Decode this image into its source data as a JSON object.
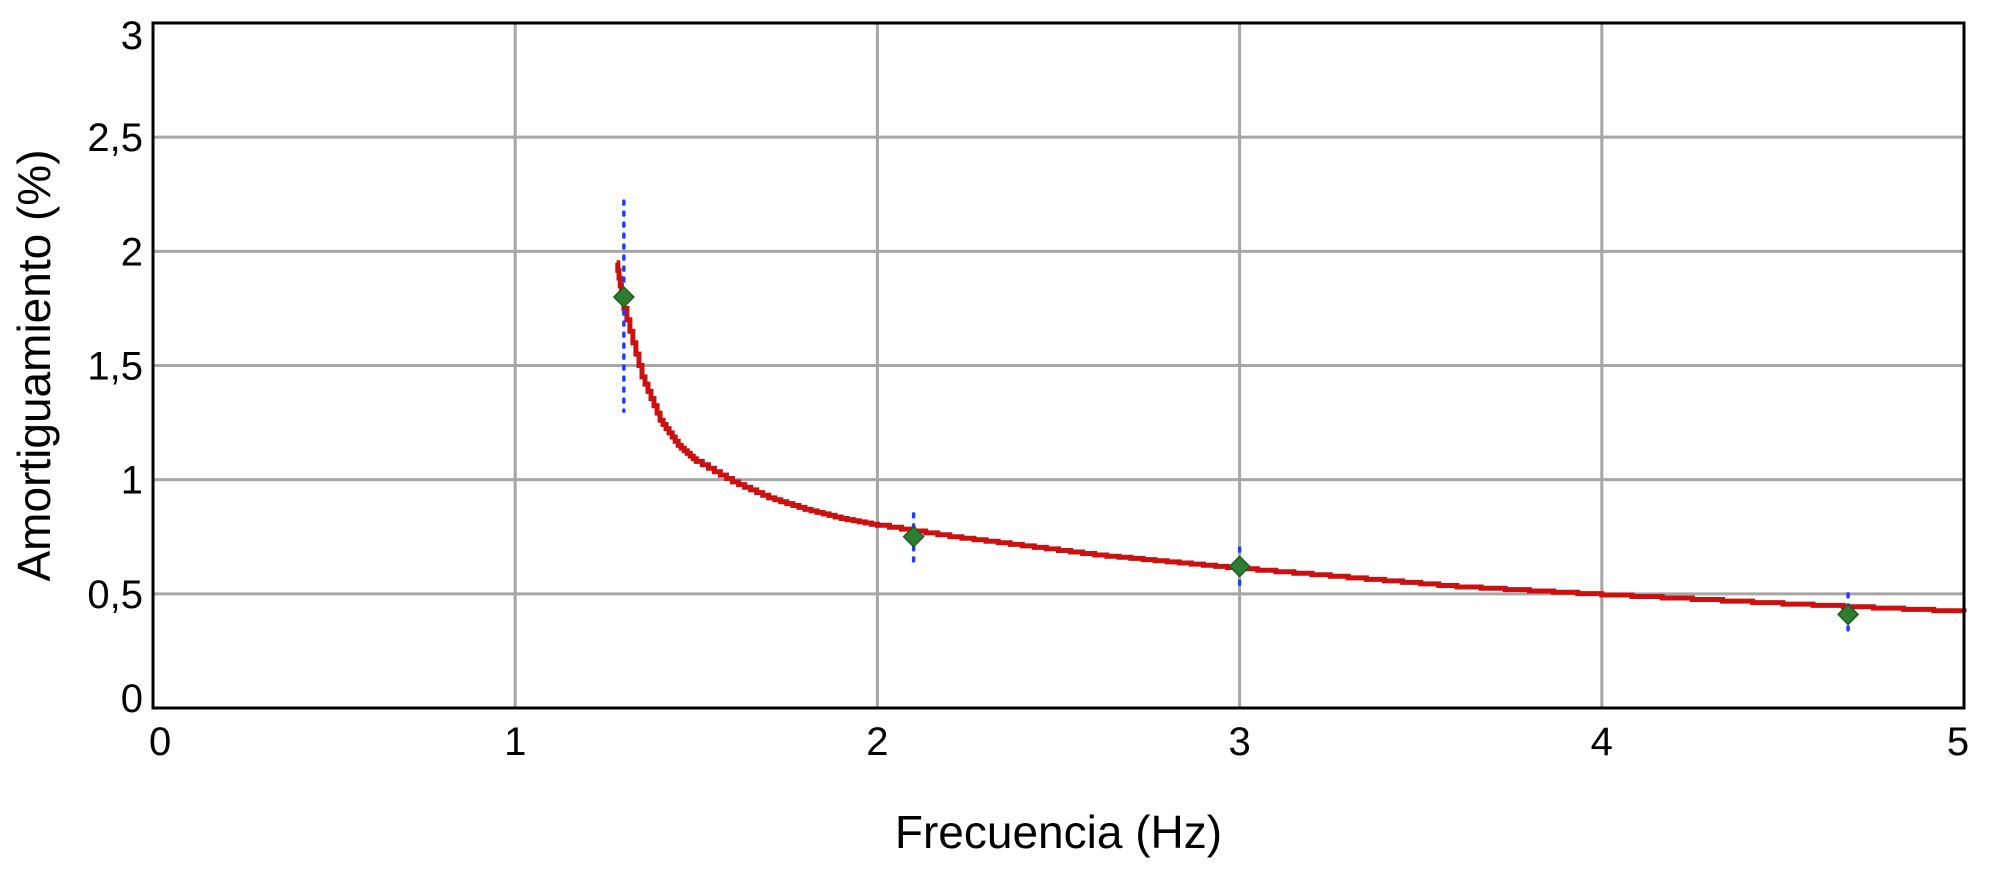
{
  "chart_data": {
    "type": "scatter",
    "title": "",
    "xlabel": "Frecuencia (Hz)",
    "ylabel": "Amortiguamiento (%)",
    "xlim": [
      0,
      5
    ],
    "ylim": [
      0,
      3
    ],
    "x_ticks": [
      "0",
      "1",
      "2",
      "3",
      "4",
      "5"
    ],
    "y_ticks": [
      "0",
      "0,5",
      "1",
      "1,5",
      "2",
      "2,5",
      "3"
    ],
    "grid": true,
    "colors": {
      "fit_curve": "#cc1010",
      "marker": "#2e7d32",
      "marker_edge": "#1b5e20",
      "error_bar": "#1f3dff",
      "grid": "#a6a6a6",
      "frame": "#000000"
    },
    "series": [
      {
        "type": "scatter",
        "points": [
          {
            "x": 1.3,
            "y": 1.8,
            "err_low": 1.3,
            "err_high": 2.22
          },
          {
            "x": 2.1,
            "y": 0.75,
            "err_low": 0.61,
            "err_high": 0.85
          },
          {
            "x": 3.0,
            "y": 0.62,
            "err_low": 0.51,
            "err_high": 0.7
          },
          {
            "x": 4.68,
            "y": 0.41,
            "err_low": 0.31,
            "err_high": 0.5
          }
        ]
      },
      {
        "type": "line",
        "points": [
          {
            "x": 1.28,
            "y": 1.95
          },
          {
            "x": 1.3,
            "y": 1.75
          },
          {
            "x": 1.35,
            "y": 1.45
          },
          {
            "x": 1.4,
            "y": 1.26
          },
          {
            "x": 1.45,
            "y": 1.15
          },
          {
            "x": 1.5,
            "y": 1.08
          },
          {
            "x": 1.6,
            "y": 0.99
          },
          {
            "x": 1.7,
            "y": 0.92
          },
          {
            "x": 1.8,
            "y": 0.87
          },
          {
            "x": 1.9,
            "y": 0.83
          },
          {
            "x": 2.0,
            "y": 0.8
          },
          {
            "x": 2.2,
            "y": 0.75
          },
          {
            "x": 2.4,
            "y": 0.71
          },
          {
            "x": 2.6,
            "y": 0.67
          },
          {
            "x": 2.8,
            "y": 0.64
          },
          {
            "x": 3.0,
            "y": 0.61
          },
          {
            "x": 3.3,
            "y": 0.57
          },
          {
            "x": 3.6,
            "y": 0.53
          },
          {
            "x": 4.0,
            "y": 0.495
          },
          {
            "x": 4.5,
            "y": 0.455
          },
          {
            "x": 5.0,
            "y": 0.42
          }
        ]
      }
    ]
  }
}
